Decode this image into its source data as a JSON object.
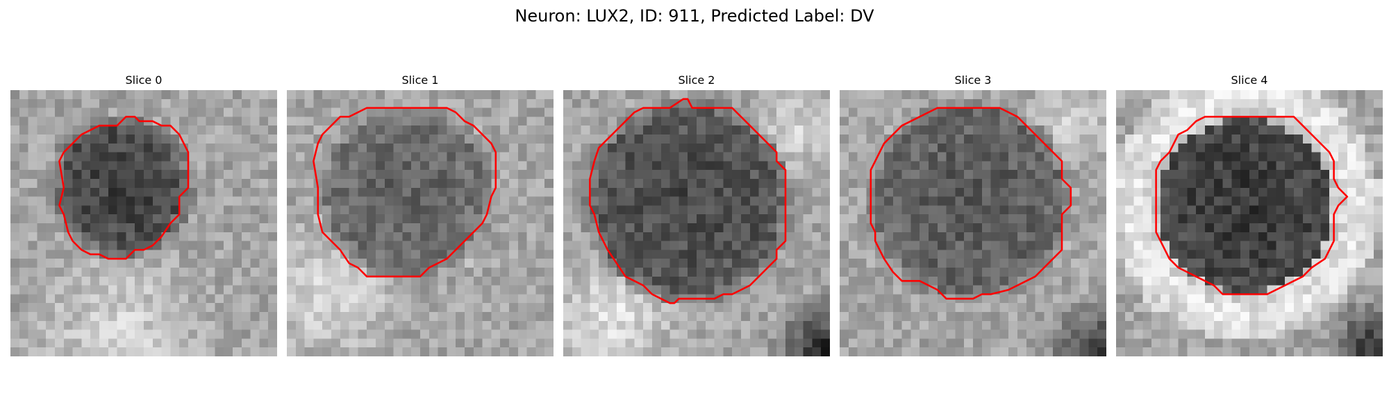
{
  "figure": {
    "title": "Neuron: LUX2, ID: 911, Predicted Label: DV",
    "contour_color": "#ff0000"
  },
  "slices": [
    {
      "label": "Slice 0"
    },
    {
      "label": "Slice 1"
    },
    {
      "label": "Slice 2"
    },
    {
      "label": "Slice 3"
    },
    {
      "label": "Slice 4"
    }
  ]
}
